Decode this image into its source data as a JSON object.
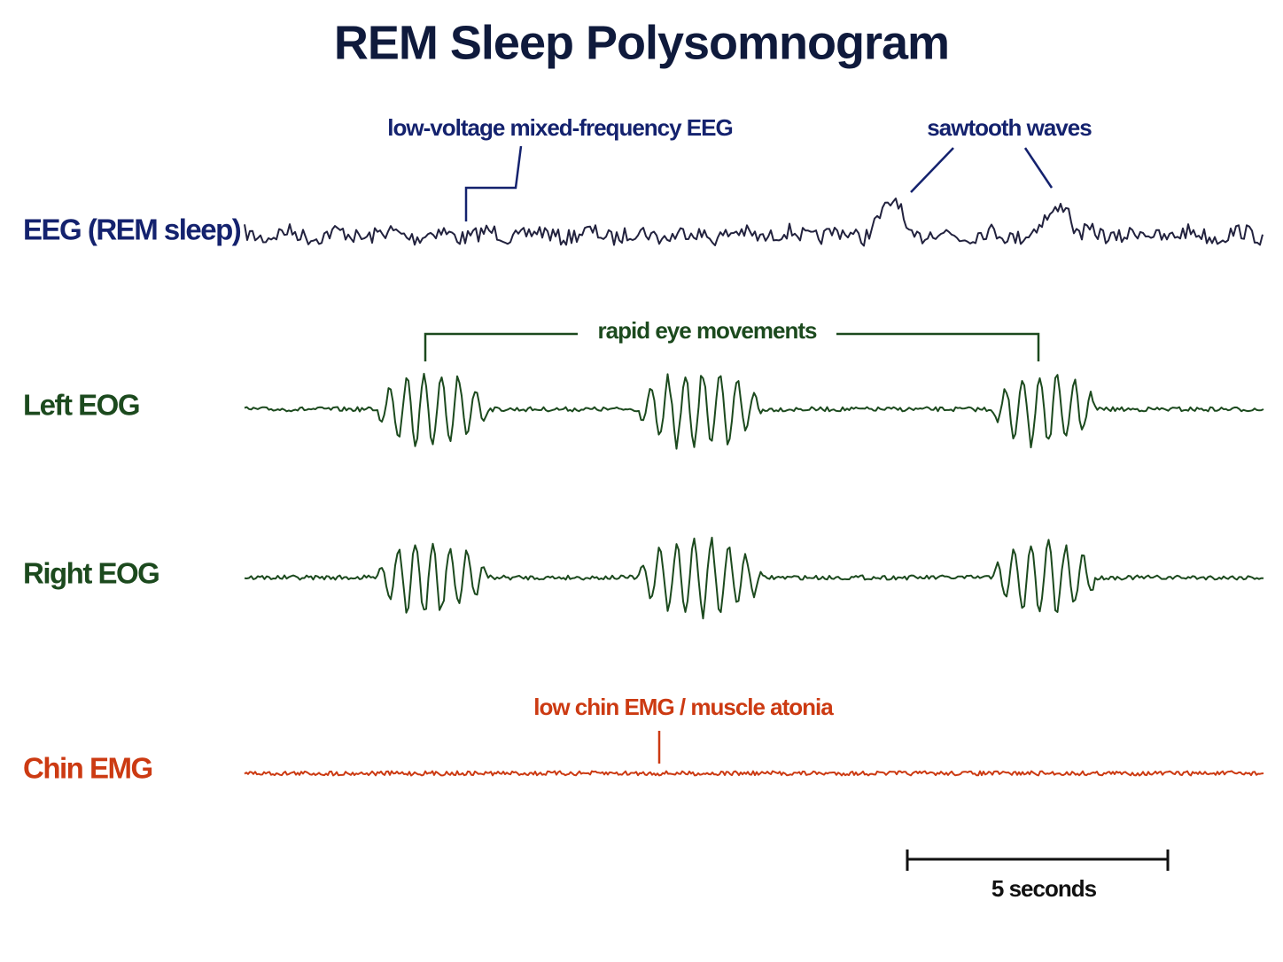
{
  "title": "REM Sleep Polysomnogram",
  "channels": [
    {
      "label": "EEG (REM sleep)"
    },
    {
      "label": "Left EOG"
    },
    {
      "label": "Right EOG"
    },
    {
      "label": "Chin EMG"
    }
  ],
  "annotations": {
    "eeg_low_voltage": "low-voltage mixed-frequency EEG",
    "sawtooth": "sawtooth waves",
    "rem": "rapid eye movements",
    "emg": "low chin EMG / muscle atonia"
  },
  "scale_bar": "5 seconds"
}
